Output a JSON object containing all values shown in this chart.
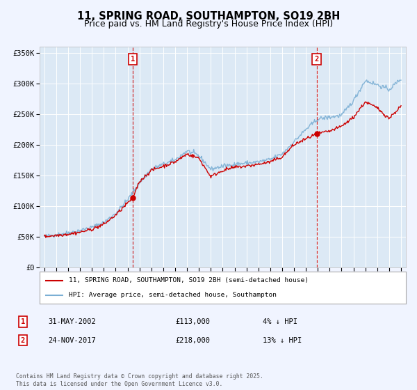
{
  "title": "11, SPRING ROAD, SOUTHAMPTON, SO19 2BH",
  "subtitle": "Price paid vs. HM Land Registry's House Price Index (HPI)",
  "title_fontsize": 10.5,
  "subtitle_fontsize": 9,
  "bg_color": "#f0f4ff",
  "plot_bg_color": "#dce9f5",
  "grid_color": "#ffffff",
  "red_line_color": "#cc0000",
  "blue_line_color": "#7bafd4",
  "marker1_date": 2002.42,
  "marker1_value": 113000,
  "marker2_date": 2017.9,
  "marker2_value": 218000,
  "legend_label_red": "11, SPRING ROAD, SOUTHAMPTON, SO19 2BH (semi-detached house)",
  "legend_label_blue": "HPI: Average price, semi-detached house, Southampton",
  "annotation1_date": "31-MAY-2002",
  "annotation1_price": "£113,000",
  "annotation1_hpi": "4% ↓ HPI",
  "annotation2_date": "24-NOV-2017",
  "annotation2_price": "£218,000",
  "annotation2_hpi": "13% ↓ HPI",
  "footer": "Contains HM Land Registry data © Crown copyright and database right 2025.\nThis data is licensed under the Open Government Licence v3.0.",
  "ylim": [
    0,
    360000
  ],
  "xlim_start": 1994.6,
  "xlim_end": 2025.4,
  "yticks": [
    0,
    50000,
    100000,
    150000,
    200000,
    250000,
    300000,
    350000
  ],
  "ytick_labels": [
    "£0",
    "£50K",
    "£100K",
    "£150K",
    "£200K",
    "£250K",
    "£300K",
    "£350K"
  ],
  "xticks": [
    1995,
    1996,
    1997,
    1998,
    1999,
    2000,
    2001,
    2002,
    2003,
    2004,
    2005,
    2006,
    2007,
    2008,
    2009,
    2010,
    2011,
    2012,
    2013,
    2014,
    2015,
    2016,
    2017,
    2018,
    2019,
    2020,
    2021,
    2022,
    2023,
    2024,
    2025
  ]
}
